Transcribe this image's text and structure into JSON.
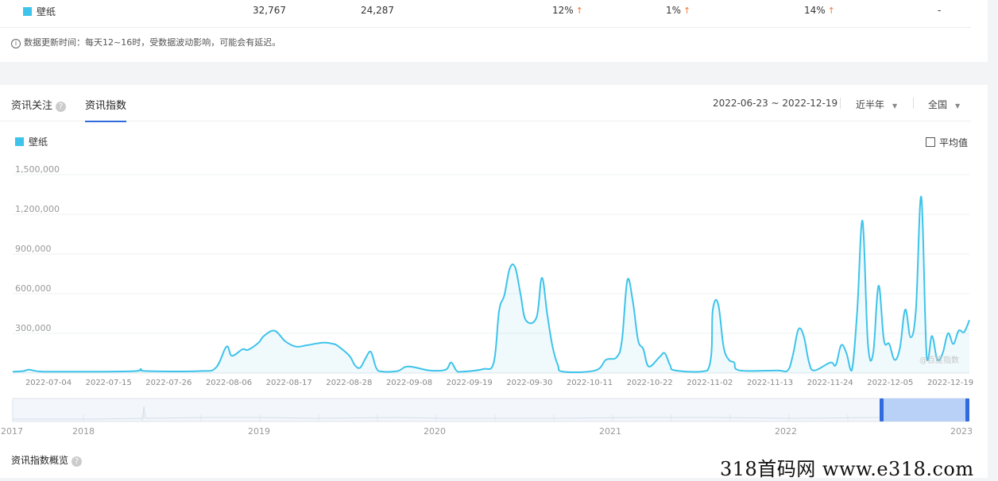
{
  "table_row": {
    "keyword": "壁纸",
    "col1": "32,767",
    "col2": "24,287",
    "col3": "12%",
    "col4": "1%",
    "col5": "14%",
    "col6": "-"
  },
  "update_note": "数据更新时间：每天12~16时，受数据波动影响，可能会有延迟。",
  "tabs": [
    {
      "label": "资讯关注"
    },
    {
      "label": "资讯指数"
    }
  ],
  "date_range": "2022-06-23 ~ 2022-12-19",
  "period_select": "近半年",
  "region_select": "全国",
  "legend_label": "壁纸",
  "avg_label": "平均值",
  "watermark": "@百度指数",
  "overview_title": "资讯指数概览",
  "site_watermark": "318首码网  www.e318.com",
  "colors": {
    "series": "#3ec3ea",
    "accent": "#2f6bdc",
    "up_arrow": "#f0793f"
  },
  "chart_data": {
    "type": "area",
    "series": [
      {
        "name": "壁纸"
      }
    ],
    "y_ticks": [
      "1,500,000",
      "1,200,000",
      "900,000",
      "600,000",
      "300,000"
    ],
    "ylim": [
      0,
      1600000
    ],
    "x_ticks": [
      "2022-07-04",
      "2022-07-15",
      "2022-07-26",
      "2022-08-06",
      "2022-08-17",
      "2022-08-28",
      "2022-09-08",
      "2022-09-19",
      "2022-09-30",
      "2022-10-11",
      "2022-10-22",
      "2022-11-02",
      "2022-11-13",
      "2022-11-24",
      "2022-12-05",
      "2022-12-19"
    ],
    "x_start": "2022-06-23",
    "x_end": "2022-12-19",
    "points": [
      [
        "2022-06-23",
        10000
      ],
      [
        "2022-06-25",
        15000
      ],
      [
        "2022-06-26",
        25000
      ],
      [
        "2022-06-28",
        12000
      ],
      [
        "2022-07-01",
        10000
      ],
      [
        "2022-07-10",
        11000
      ],
      [
        "2022-07-16",
        15000
      ],
      [
        "2022-07-17",
        30000
      ],
      [
        "2022-07-18",
        15000
      ],
      [
        "2022-07-28",
        15000
      ],
      [
        "2022-07-31",
        40000
      ],
      [
        "2022-08-02",
        200000
      ],
      [
        "2022-08-03",
        130000
      ],
      [
        "2022-08-05",
        180000
      ],
      [
        "2022-08-06",
        175000
      ],
      [
        "2022-08-08",
        230000
      ],
      [
        "2022-08-09",
        280000
      ],
      [
        "2022-08-11",
        320000
      ],
      [
        "2022-08-13",
        240000
      ],
      [
        "2022-08-15",
        200000
      ],
      [
        "2022-08-17",
        210000
      ],
      [
        "2022-08-20",
        230000
      ],
      [
        "2022-08-22",
        220000
      ],
      [
        "2022-08-23",
        200000
      ],
      [
        "2022-08-25",
        130000
      ],
      [
        "2022-08-26",
        60000
      ],
      [
        "2022-08-27",
        40000
      ],
      [
        "2022-08-28",
        110000
      ],
      [
        "2022-08-29",
        160000
      ],
      [
        "2022-08-30",
        40000
      ],
      [
        "2022-08-31",
        12000
      ],
      [
        "2022-09-03",
        15000
      ],
      [
        "2022-09-05",
        50000
      ],
      [
        "2022-09-09",
        20000
      ],
      [
        "2022-09-12",
        25000
      ],
      [
        "2022-09-13",
        80000
      ],
      [
        "2022-09-14",
        20000
      ],
      [
        "2022-09-15",
        10000
      ],
      [
        "2022-09-19",
        30000
      ],
      [
        "2022-09-21",
        80000
      ],
      [
        "2022-09-22",
        470000
      ],
      [
        "2022-09-23",
        590000
      ],
      [
        "2022-09-24",
        790000
      ],
      [
        "2022-09-25",
        800000
      ],
      [
        "2022-09-26",
        600000
      ],
      [
        "2022-09-27",
        400000
      ],
      [
        "2022-09-29",
        420000
      ],
      [
        "2022-09-30",
        720000
      ],
      [
        "2022-10-01",
        450000
      ],
      [
        "2022-10-02",
        200000
      ],
      [
        "2022-10-03",
        60000
      ],
      [
        "2022-10-04",
        10000
      ],
      [
        "2022-10-10",
        20000
      ],
      [
        "2022-10-12",
        100000
      ],
      [
        "2022-10-14",
        120000
      ],
      [
        "2022-10-15",
        250000
      ],
      [
        "2022-10-16",
        700000
      ],
      [
        "2022-10-17",
        550000
      ],
      [
        "2022-10-18",
        250000
      ],
      [
        "2022-10-19",
        180000
      ],
      [
        "2022-10-20",
        50000
      ],
      [
        "2022-10-22",
        120000
      ],
      [
        "2022-10-23",
        150000
      ],
      [
        "2022-10-24",
        60000
      ],
      [
        "2022-10-25",
        20000
      ],
      [
        "2022-10-31",
        20000
      ],
      [
        "2022-11-01",
        480000
      ],
      [
        "2022-11-02",
        520000
      ],
      [
        "2022-11-03",
        200000
      ],
      [
        "2022-11-04",
        100000
      ],
      [
        "2022-11-05",
        80000
      ],
      [
        "2022-11-06",
        20000
      ],
      [
        "2022-11-13",
        20000
      ],
      [
        "2022-11-15",
        20000
      ],
      [
        "2022-11-16",
        140000
      ],
      [
        "2022-11-17",
        330000
      ],
      [
        "2022-11-18",
        280000
      ],
      [
        "2022-11-19",
        80000
      ],
      [
        "2022-11-20",
        20000
      ],
      [
        "2022-11-23",
        80000
      ],
      [
        "2022-11-24",
        60000
      ],
      [
        "2022-11-25",
        210000
      ],
      [
        "2022-11-26",
        150000
      ],
      [
        "2022-11-27",
        20000
      ],
      [
        "2022-11-28",
        460000
      ],
      [
        "2022-11-29",
        1150000
      ],
      [
        "2022-11-30",
        230000
      ],
      [
        "2022-12-01",
        150000
      ],
      [
        "2022-12-02",
        660000
      ],
      [
        "2022-12-03",
        250000
      ],
      [
        "2022-12-04",
        220000
      ],
      [
        "2022-12-05",
        100000
      ],
      [
        "2022-12-06",
        190000
      ],
      [
        "2022-12-07",
        480000
      ],
      [
        "2022-12-08",
        270000
      ],
      [
        "2022-12-09",
        480000
      ],
      [
        "2022-12-10",
        1330000
      ],
      [
        "2022-12-11",
        130000
      ],
      [
        "2022-12-12",
        280000
      ],
      [
        "2022-12-13",
        100000
      ],
      [
        "2022-12-14",
        150000
      ],
      [
        "2022-12-15",
        300000
      ],
      [
        "2022-12-16",
        220000
      ],
      [
        "2022-12-17",
        320000
      ],
      [
        "2022-12-18",
        310000
      ],
      [
        "2022-12-19",
        400000
      ]
    ],
    "grid": true
  },
  "navigator": {
    "years": [
      "2017",
      "2018",
      "2019",
      "2020",
      "2021",
      "2022",
      "2023"
    ],
    "selection": [
      "2022-06-23",
      "2022-12-19"
    ]
  }
}
